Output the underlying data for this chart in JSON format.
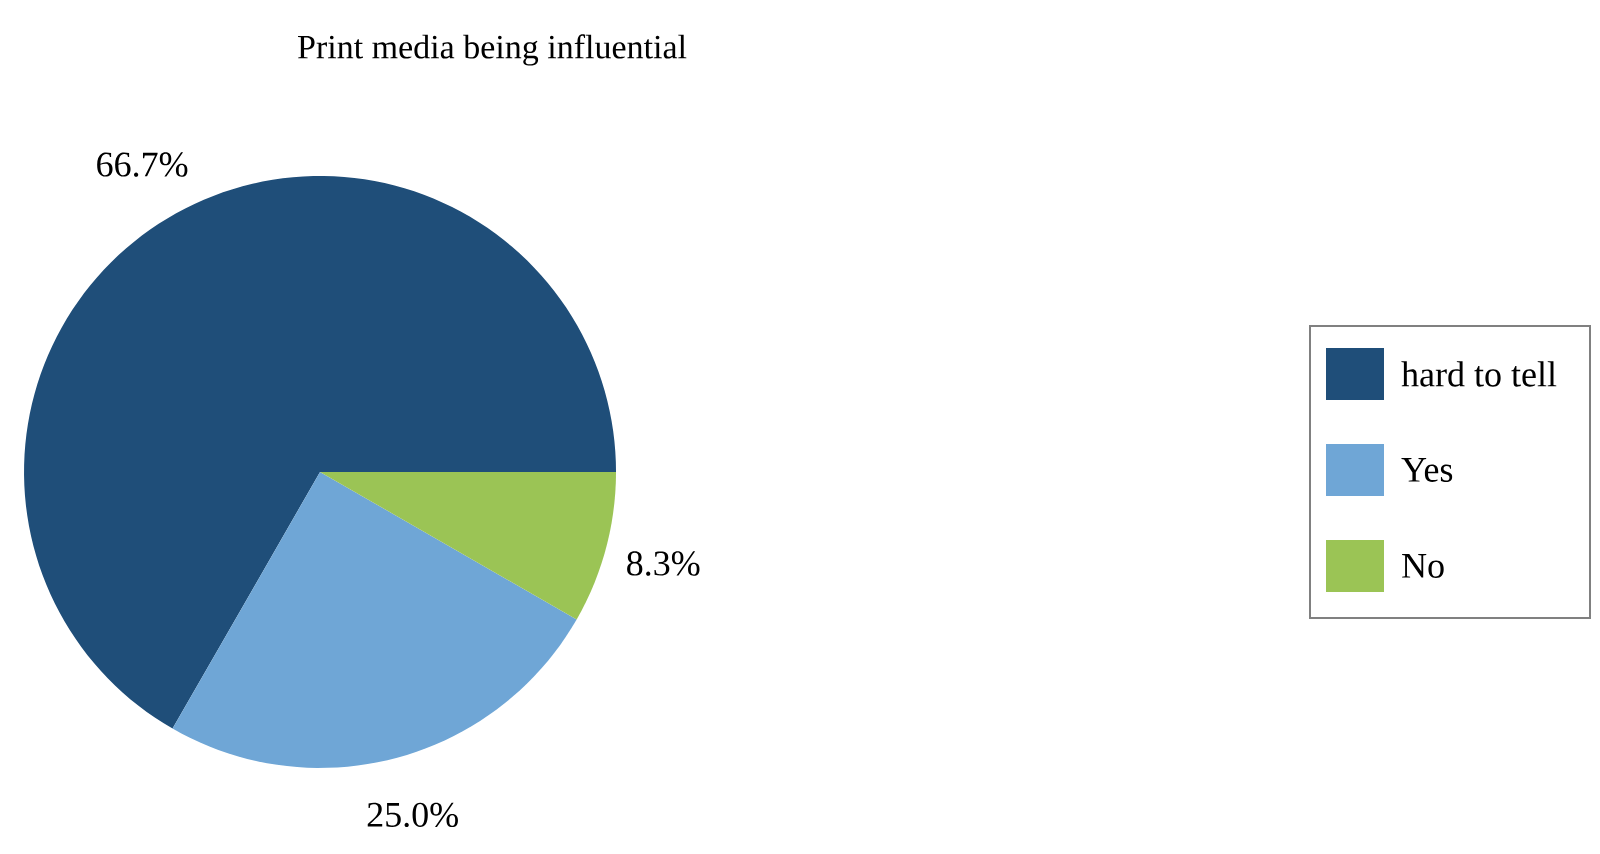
{
  "chart_data": {
    "type": "pie",
    "title": "Print media being influential",
    "categories": [
      "hard to tell",
      "Yes",
      "No"
    ],
    "values": [
      66.7,
      25.0,
      8.3
    ],
    "colors": [
      "#1f4e79",
      "#6fa6d6",
      "#9bc455"
    ],
    "value_labels": [
      "66.7%",
      "25.0%",
      "8.3%"
    ],
    "legend": "right"
  }
}
